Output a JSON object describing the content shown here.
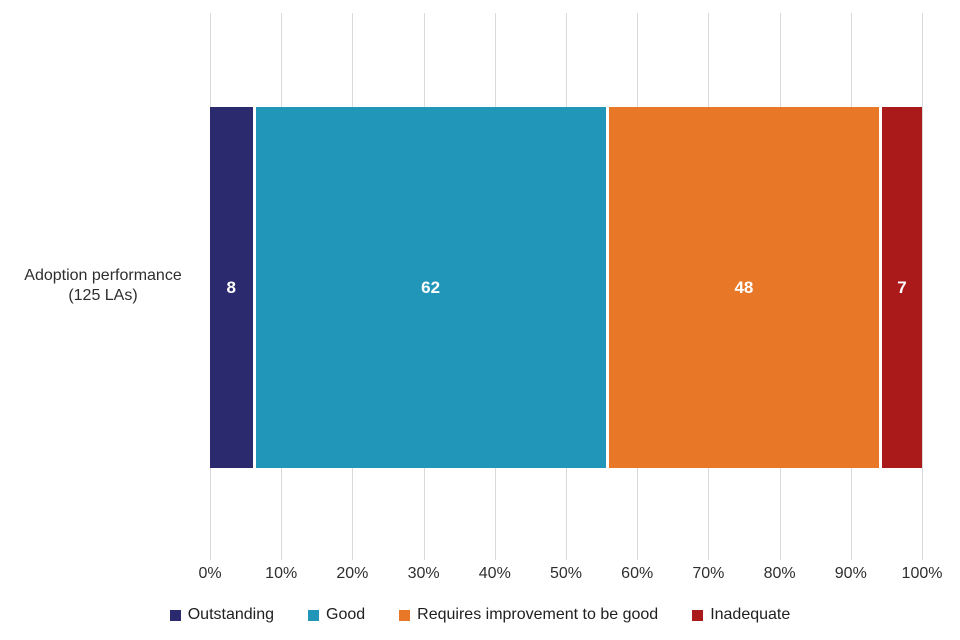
{
  "chart_data": {
    "type": "bar",
    "orientation": "horizontal_stacked",
    "title": "",
    "categories": [
      "Adoption performance (125 LAs)"
    ],
    "category_label_lines": [
      "Adoption performance",
      "(125 LAs)"
    ],
    "total": 125,
    "series": [
      {
        "name": "Outstanding",
        "values": [
          8
        ],
        "color": "#2C2A6E"
      },
      {
        "name": "Good",
        "values": [
          62
        ],
        "color": "#2196B8"
      },
      {
        "name": "Requires improvement to be good",
        "values": [
          48
        ],
        "color": "#E87728"
      },
      {
        "name": "Inadequate",
        "values": [
          7
        ],
        "color": "#AB1A1A"
      }
    ],
    "x_axis": {
      "min": 0,
      "max": 100,
      "tick_step": 10,
      "ticks": [
        "0%",
        "10%",
        "20%",
        "30%",
        "40%",
        "50%",
        "60%",
        "70%",
        "80%",
        "90%",
        "100%"
      ]
    },
    "grid": "vertical",
    "gridline_color": "#D9D9D9",
    "data_label_color": "#FFFFFF",
    "legend_position": "bottom"
  }
}
